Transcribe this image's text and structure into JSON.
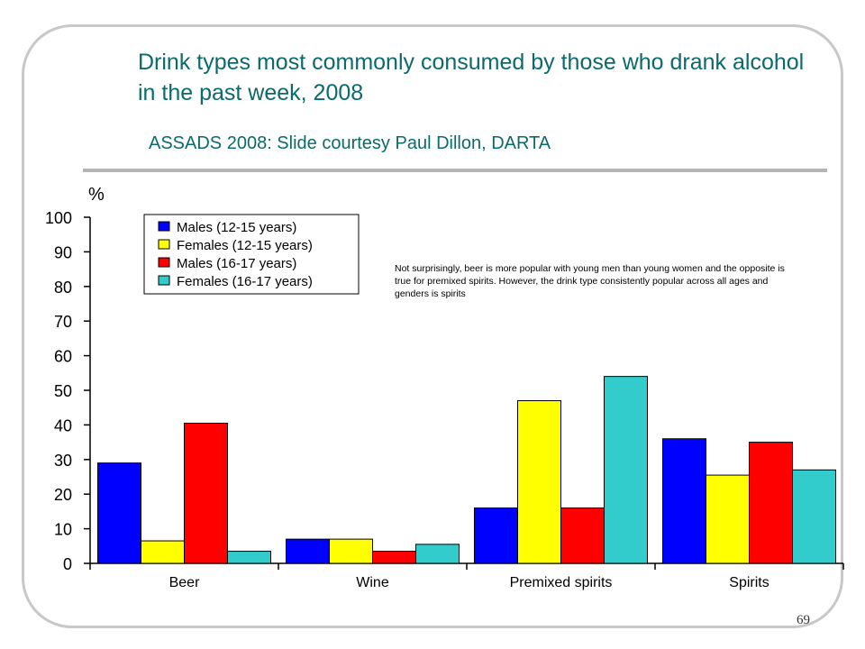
{
  "slide": {
    "title": "Drink types most commonly consumed by those who drank alcohol in the past week, 2008",
    "subtitle": "ASSADS 2008: Slide courtesy Paul Dillon, DARTA",
    "annotation": "Not surprisingly, beer is more popular with young men than young women and the opposite is true for premixed spirits. However, the drink type consistently popular across all ages and genders is spirits",
    "page_number": "69"
  },
  "chart_data": {
    "type": "bar",
    "title": "",
    "xlabel": "",
    "ylabel": "%",
    "ylim": [
      0,
      100
    ],
    "yticks": [
      0,
      10,
      20,
      30,
      40,
      50,
      60,
      70,
      80,
      90,
      100
    ],
    "categories": [
      "Beer",
      "Wine",
      "Premixed spirits",
      "Spirits"
    ],
    "series": [
      {
        "name": "Males (12-15 years)",
        "color": "#0000ff",
        "values": [
          29,
          7,
          16,
          36
        ]
      },
      {
        "name": "Females (12-15 years)",
        "color": "#ffff00",
        "values": [
          6.5,
          7,
          47,
          25.5
        ]
      },
      {
        "name": "Males (16-17 years)",
        "color": "#ff0000",
        "values": [
          40.5,
          3.5,
          16,
          35
        ]
      },
      {
        "name": "Females (16-17 years)",
        "color": "#33cccc",
        "values": [
          3.5,
          5.5,
          54,
          27
        ]
      }
    ],
    "legend_position": "top-left",
    "grid": false
  }
}
